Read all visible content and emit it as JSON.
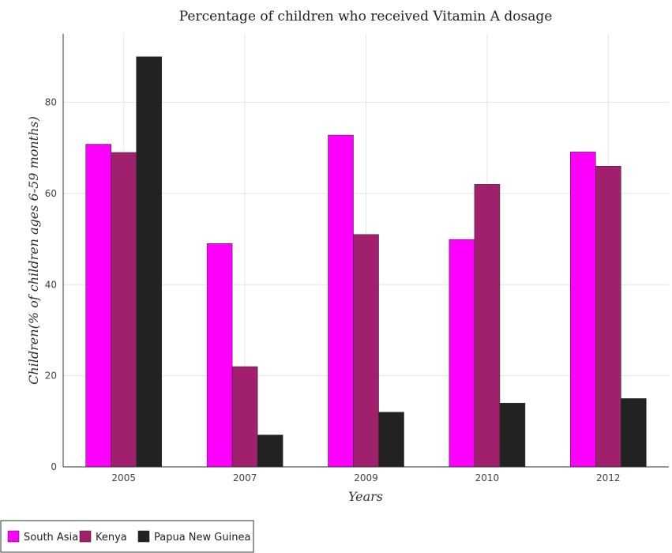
{
  "chart_data": {
    "type": "bar",
    "title": "Percentage of children who received Vitamin A dosage",
    "xlabel": "Years",
    "ylabel": "Children(% of children ages 6-59 months)",
    "categories": [
      "2005",
      "2007",
      "2009",
      "2010",
      "2012"
    ],
    "series": [
      {
        "name": "South Asia",
        "color": "#ff00ff",
        "values": [
          70.8,
          49.0,
          72.8,
          49.9,
          69.1
        ]
      },
      {
        "name": "Kenya",
        "color": "#a0206e",
        "values": [
          69,
          22,
          51,
          62,
          66
        ]
      },
      {
        "name": "Papua New Guinea",
        "color": "#222222",
        "values": [
          90,
          7,
          12,
          14,
          15
        ]
      }
    ],
    "ylim": [
      0,
      95
    ],
    "yticks": [
      0,
      20,
      40,
      60,
      80
    ],
    "grid": true,
    "legend_position": "bottom-left"
  }
}
